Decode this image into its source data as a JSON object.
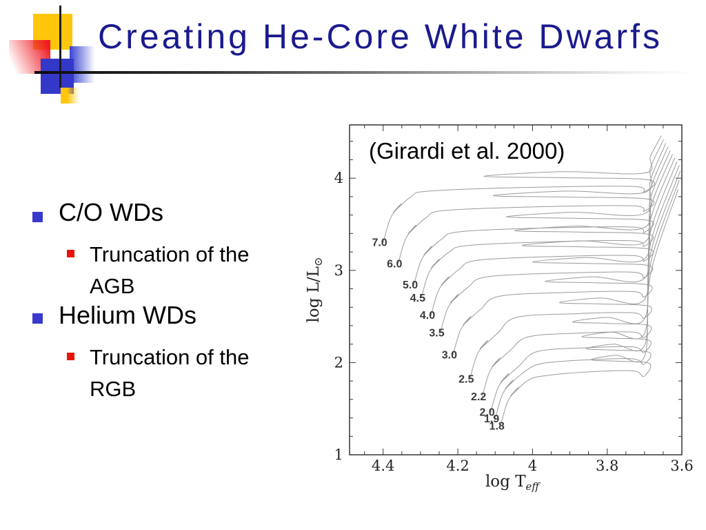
{
  "slide": {
    "title": "Creating He-Core White Dwarfs",
    "bullets": [
      {
        "level": 1,
        "text": "C/O WDs"
      },
      {
        "level": 2,
        "text": "Truncation of the AGB"
      },
      {
        "level": 1,
        "text": "Helium WDs"
      },
      {
        "level": 2,
        "text": "Truncation of the RGB"
      }
    ]
  },
  "colors": {
    "title": "#1a1a8e",
    "bullet_level1": "#3a3acc",
    "bullet_level2": "#e8140c",
    "decor_yellow": "#ffc60b",
    "decor_blue": "#3438c8",
    "decor_red": "#ee1c25",
    "track": "#9a9a9a",
    "frame": "#333333"
  },
  "chart_data": {
    "type": "line",
    "caption": "(Girardi et al. 2000)",
    "xlabel": {
      "text": "log T",
      "sub": "eff"
    },
    "ylabel": {
      "text": "log L/L",
      "sub": "⊙"
    },
    "x_axis": {
      "range": [
        4.49,
        3.6
      ],
      "reversed": true,
      "major_ticks": [
        {
          "v": 4.4,
          "label": "4.4"
        },
        {
          "v": 4.2,
          "label": "4.2"
        },
        {
          "v": 4.0,
          "label": "4"
        },
        {
          "v": 3.8,
          "label": "3.8"
        },
        {
          "v": 3.6,
          "label": "3.6"
        }
      ],
      "minor_step": 0.05
    },
    "y_axis": {
      "range": [
        1.0,
        4.58
      ],
      "major_ticks": [
        {
          "v": 1,
          "label": "1"
        },
        {
          "v": 2,
          "label": "2"
        },
        {
          "v": 3,
          "label": "3"
        },
        {
          "v": 4,
          "label": "4"
        }
      ],
      "minor_step": 0.2
    },
    "grid": false,
    "tracks": [
      {
        "label": "7.0",
        "zams": [
          4.4,
          3.3
        ],
        "run_logL": 3.9,
        "loop_tip_logT": 4.13,
        "loop_top_logL": 4.02,
        "agb_end": [
          3.655,
          4.46
        ]
      },
      {
        "label": "6.0",
        "zams": [
          4.36,
          3.07
        ],
        "run_logL": 3.69,
        "loop_tip_logT": 4.105,
        "loop_top_logL": 3.81,
        "agb_end": [
          3.649,
          4.42
        ]
      },
      {
        "label": "5.0",
        "zams": [
          4.318,
          2.84
        ],
        "run_logL": 3.46,
        "loop_tip_logT": 4.07,
        "loop_top_logL": 3.58,
        "agb_end": [
          3.643,
          4.38
        ]
      },
      {
        "label": "4.5",
        "zams": [
          4.298,
          2.7
        ],
        "run_logL": 3.31,
        "loop_tip_logT": 4.048,
        "loop_top_logL": 3.43,
        "agb_end": [
          3.637,
          4.34
        ]
      },
      {
        "label": "4.0",
        "zams": [
          4.272,
          2.51
        ],
        "run_logL": 3.15,
        "loop_tip_logT": 4.028,
        "loop_top_logL": 3.27,
        "agb_end": [
          3.631,
          4.3
        ]
      },
      {
        "label": "3.5",
        "zams": [
          4.247,
          2.32
        ],
        "run_logL": 2.97,
        "loop_tip_logT": 4.0,
        "loop_top_logL": 3.09,
        "agb_end": [
          3.625,
          4.26
        ]
      },
      {
        "label": "3.0",
        "zams": [
          4.213,
          2.08
        ],
        "run_logL": 2.76,
        "loop_tip_logT": 3.966,
        "loop_top_logL": 2.88,
        "agb_end": [
          3.619,
          4.22
        ]
      },
      {
        "label": "2.5",
        "zams": [
          4.168,
          1.82
        ],
        "run_logL": 2.53,
        "loop_tip_logT": 3.928,
        "loop_top_logL": 2.65,
        "agb_end": [
          3.613,
          4.18
        ]
      },
      {
        "label": "2.2",
        "zams": [
          4.135,
          1.63
        ],
        "run_logL": 2.32,
        "loop_tip_logT": 3.893,
        "loop_top_logL": 2.44,
        "agb_end": [
          3.607,
          4.14
        ]
      },
      {
        "label": "2.0",
        "zams": [
          4.112,
          1.46
        ],
        "run_logL": 2.16,
        "loop_tip_logT": 3.868,
        "loop_top_logL": 2.28,
        "agb_end": [
          3.604,
          4.08
        ]
      },
      {
        "label": "1.9",
        "zams": [
          4.1,
          1.39
        ],
        "run_logL": 2.03,
        "loop_tip_logT": 3.856,
        "loop_top_logL": 2.15,
        "agb_end": [
          3.607,
          3.98
        ]
      },
      {
        "label": "1.8",
        "zams": [
          4.086,
          1.31
        ],
        "run_logL": 1.9,
        "loop_tip_logT": 3.843,
        "loop_top_logL": 2.03,
        "agb_end": [
          3.61,
          3.88
        ]
      }
    ]
  }
}
